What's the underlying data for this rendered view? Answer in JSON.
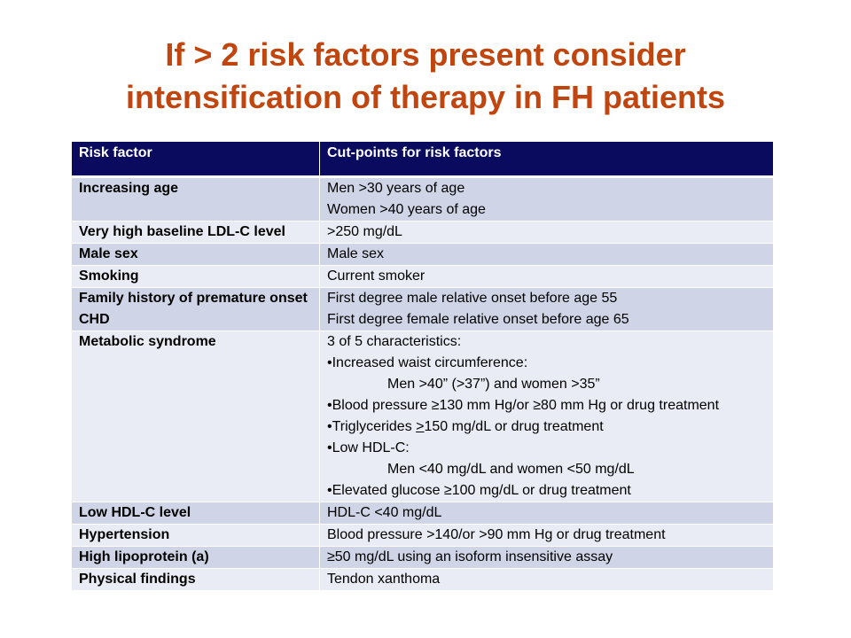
{
  "title": {
    "line1": "If > 2 risk factors present consider",
    "line2": "intensification of therapy in FH patients"
  },
  "table": {
    "headers": [
      "Risk factor",
      "Cut-points for risk factors"
    ],
    "rows": [
      {
        "factor": "Increasing age",
        "cut": [
          "Men >30 years of age",
          "Women >40 years of age"
        ]
      },
      {
        "factor": "Very high baseline LDL-C  level",
        "cut": [
          ">250 mg/dL"
        ]
      },
      {
        "factor": "Male sex",
        "cut": [
          "Male sex"
        ]
      },
      {
        "factor": "Smoking",
        "cut": [
          "Current smoker"
        ]
      },
      {
        "factor": "Family history of premature onset CHD",
        "cut": [
          "First degree male relative onset before age 55",
          "First degree female relative onset before age 65"
        ]
      },
      {
        "factor": "Metabolic syndrome",
        "cut": [
          "3 of 5 characteristics:",
          "•Increased waist circumference:",
          "Men >40” (>37”) and women >35”",
          "•Blood pressure ≥130 mm Hg/or ≥80 mm Hg or drug treatment",
          "•Triglycerides ",
          ">",
          "150 mg/dL or drug treatment",
          "•Low HDL-C:",
          "Men  <40 mg/dL and women <50 mg/dL",
          "•Elevated glucose ≥100 mg/dL or drug treatment"
        ]
      },
      {
        "factor": "Low HDL-C level",
        "cut": [
          "HDL-C <40 mg/dL"
        ]
      },
      {
        "factor": "Hypertension",
        "cut": [
          "Blood pressure >140/or >90 mm Hg or drug treatment"
        ]
      },
      {
        "factor": "High lipoprotein (a)",
        "cut": [
          "≥50 mg/dL using an isoform insensitive assay"
        ]
      },
      {
        "factor": "Physical findings",
        "cut": [
          "Tendon xanthoma"
        ]
      }
    ]
  }
}
